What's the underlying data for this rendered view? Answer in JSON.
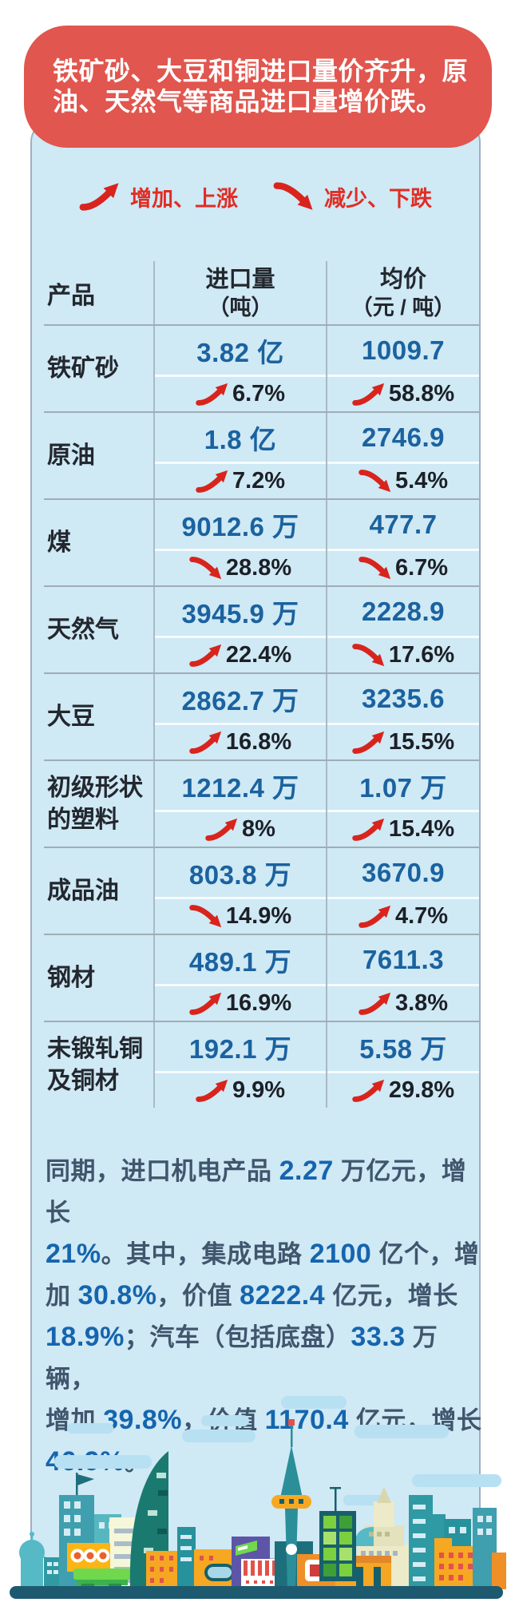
{
  "header": {
    "line1": "铁矿砂、大豆和铜进口量价齐升，原",
    "line2": "油、天然气等商品进口量增价跌。"
  },
  "legend": {
    "up_label": "增加、上涨",
    "down_label": "减少、下跌"
  },
  "table": {
    "columns": {
      "product": "产品",
      "quantity_line1": "进口量",
      "quantity_line2": "（吨）",
      "price_line1": "均价",
      "price_line2": "（元 / 吨）"
    },
    "rows": [
      {
        "product": "铁矿砂",
        "qty": "3.82 亿",
        "qty_dir": "up",
        "qty_pct": "6.7%",
        "price": "1009.7",
        "price_dir": "up",
        "price_pct": "58.8%"
      },
      {
        "product": "原油",
        "qty": "1.8 亿",
        "qty_dir": "up",
        "qty_pct": "7.2%",
        "price": "2746.9",
        "price_dir": "down",
        "price_pct": "5.4%"
      },
      {
        "product": "煤",
        "qty": "9012.6 万",
        "qty_dir": "down",
        "qty_pct": "28.8%",
        "price": "477.7",
        "price_dir": "down",
        "price_pct": "6.7%"
      },
      {
        "product": "天然气",
        "qty": "3945.9 万",
        "qty_dir": "up",
        "qty_pct": "22.4%",
        "price": "2228.9",
        "price_dir": "down",
        "price_pct": "17.6%"
      },
      {
        "product": "大豆",
        "qty": "2862.7 万",
        "qty_dir": "up",
        "qty_pct": "16.8%",
        "price": "3235.6",
        "price_dir": "up",
        "price_pct": "15.5%"
      },
      {
        "product": "初级形状的塑料",
        "qty": "1212.4 万",
        "qty_dir": "up",
        "qty_pct": "8%",
        "price": "1.07 万",
        "price_dir": "up",
        "price_pct": "15.4%"
      },
      {
        "product": "成品油",
        "qty": "803.8 万",
        "qty_dir": "down",
        "qty_pct": "14.9%",
        "price": "3670.9",
        "price_dir": "up",
        "price_pct": "4.7%"
      },
      {
        "product": "钢材",
        "qty": "489.1 万",
        "qty_dir": "up",
        "qty_pct": "16.9%",
        "price": "7611.3",
        "price_dir": "up",
        "price_pct": "3.8%"
      },
      {
        "product": "未锻轧铜及铜材",
        "qty": "192.1 万",
        "qty_dir": "up",
        "qty_pct": "9.9%",
        "price": "5.58 万",
        "price_dir": "up",
        "price_pct": "29.8%"
      }
    ]
  },
  "paragraph": {
    "segments": [
      {
        "t": "同期，进口机电产品 "
      },
      {
        "t": "2.27",
        "em": true
      },
      {
        "t": " 万亿元，增长"
      },
      {
        "br": true
      },
      {
        "t": "21%",
        "em": true
      },
      {
        "t": "。其中，集成电路 "
      },
      {
        "t": "2100",
        "em": true
      },
      {
        "t": " 亿个，增"
      },
      {
        "br": true
      },
      {
        "t": "加 "
      },
      {
        "t": "30.8%",
        "em": true
      },
      {
        "t": "，价值 "
      },
      {
        "t": "8222.4",
        "em": true
      },
      {
        "t": " 亿元，增长"
      },
      {
        "br": true
      },
      {
        "t": "18.9%",
        "em": true
      },
      {
        "t": "；汽车（包括底盘）"
      },
      {
        "t": "33.3",
        "em": true
      },
      {
        "t": " 万辆，"
      },
      {
        "br": true
      },
      {
        "t": "增加 "
      },
      {
        "t": "39.8%",
        "em": true
      },
      {
        "t": "，价值 "
      },
      {
        "t": "1170.4",
        "em": true
      },
      {
        "t": " 亿元，增长"
      },
      {
        "br": true
      },
      {
        "t": "46.9%",
        "em": true
      },
      {
        "t": "。"
      }
    ]
  },
  "colors": {
    "banner_red": "#e1564e",
    "arrow_red": "#d8241c",
    "legend_text_red": "#e02d24",
    "card_blue": "#cfe9f5",
    "value_blue": "#1b629f",
    "number_blue": "#1565ae",
    "body_text": "#3f566d",
    "table_text": "#23272e",
    "ground_teal": "#1d5a70"
  },
  "chart_data": {
    "type": "table",
    "title": "铁矿砂、大豆和铜进口量价齐升，原油、天然气等商品进口量增价跌。",
    "legend": [
      "增加、上涨",
      "减少、下跌"
    ],
    "columns": [
      "产品",
      "进口量（吨）",
      "均价（元 / 吨）"
    ],
    "rows": [
      {
        "product": "铁矿砂",
        "import_volume": "3.82 亿",
        "volume_change": "+6.7%",
        "avg_price": "1009.7",
        "price_change": "+58.8%"
      },
      {
        "product": "原油",
        "import_volume": "1.8 亿",
        "volume_change": "+7.2%",
        "avg_price": "2746.9",
        "price_change": "-5.4%"
      },
      {
        "product": "煤",
        "import_volume": "9012.6 万",
        "volume_change": "-28.8%",
        "avg_price": "477.7",
        "price_change": "-6.7%"
      },
      {
        "product": "天然气",
        "import_volume": "3945.9 万",
        "volume_change": "+22.4%",
        "avg_price": "2228.9",
        "price_change": "-17.6%"
      },
      {
        "product": "大豆",
        "import_volume": "2862.7 万",
        "volume_change": "+16.8%",
        "avg_price": "3235.6",
        "price_change": "+15.5%"
      },
      {
        "product": "初级形状的塑料",
        "import_volume": "1212.4 万",
        "volume_change": "+8%",
        "avg_price": "1.07 万",
        "price_change": "+15.4%"
      },
      {
        "product": "成品油",
        "import_volume": "803.8 万",
        "volume_change": "-14.9%",
        "avg_price": "3670.9",
        "price_change": "+4.7%"
      },
      {
        "product": "钢材",
        "import_volume": "489.1 万",
        "volume_change": "+16.9%",
        "avg_price": "7611.3",
        "price_change": "+3.8%"
      },
      {
        "product": "未锻轧铜及铜材",
        "import_volume": "192.1 万",
        "volume_change": "+9.9%",
        "avg_price": "5.58 万",
        "price_change": "+29.8%"
      }
    ],
    "footnote": "同期，进口机电产品 2.27 万亿元，增长 21%。其中，集成电路 2100 亿个，增加 30.8%，价值 8222.4 亿元，增长 18.9%；汽车（包括底盘）33.3 万辆，增加 39.8%，价值 1170.4 亿元，增长 46.9%。"
  }
}
